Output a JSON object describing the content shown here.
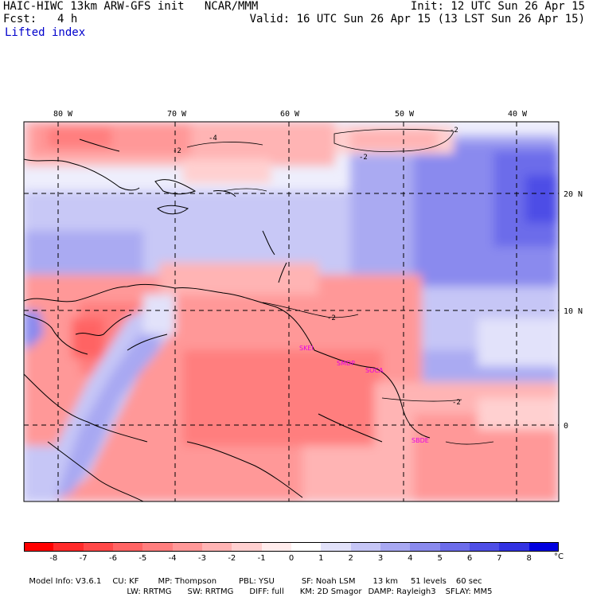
{
  "header": {
    "title_left": "HAIC-HIWC 13km ARW-GFS init   NCAR/MMM",
    "fcst_label": "Fcst:",
    "fcst_value": "4 h",
    "init": "Init: 12 UTC Sun 26 Apr 15",
    "valid": "Valid: 16 UTC Sun 26 Apr 15 (13 LST Sun 26 Apr 15)",
    "field": "Lifted index"
  },
  "map": {
    "lon_labels": [
      "80 W",
      "70 W",
      "60 W",
      "50 W",
      "40 W"
    ],
    "lat_labels": [
      "20 N",
      "10 N",
      "0"
    ],
    "contour_labels": [
      "-4",
      "-2",
      "-2",
      "-2",
      "-2",
      "-2"
    ],
    "stations": [
      "SKEI",
      "SMDP",
      "SOCA",
      "SBDE"
    ],
    "colors": {
      "neg8": "#ff0000",
      "neg7": "#ff3333",
      "neg6": "#ff5050",
      "neg5": "#ff6b6b",
      "neg4": "#ff8a8a",
      "neg3": "#ffa8a8",
      "neg2": "#ffc6c6",
      "neg1": "#ffe2e2",
      "zero": "#ffffff",
      "pos1": "#e3e3fb",
      "pos2": "#c8c8f6",
      "pos3": "#aaaaf2",
      "pos4": "#8c8cee",
      "pos5": "#6e6ee8",
      "pos6": "#5252e4",
      "pos7": "#3434e0",
      "pos8": "#1414dc",
      "station": "#e600e6"
    }
  },
  "colorbar": {
    "labels": [
      "-8",
      "-7",
      "-6",
      "-5",
      "-4",
      "-3",
      "-2",
      "-1",
      "0",
      "1",
      "2",
      "3",
      "4",
      "5",
      "6",
      "7",
      "8"
    ],
    "unit": "°C",
    "colors": [
      "#ff0000",
      "#ff2a2a",
      "#ff4848",
      "#ff6464",
      "#ff7e7e",
      "#ff9898",
      "#ffb4b4",
      "#ffd0d0",
      "#ffecec",
      "#ffffff",
      "#e2e2fa",
      "#c6c6f6",
      "#a8a8f2",
      "#8a8aee",
      "#6c6cea",
      "#4e4ee6",
      "#3232e2",
      "#0000e0"
    ]
  },
  "footer": {
    "line1": [
      "Model Info: V3.6.1",
      "CU: KF",
      "MP: Thompson",
      "PBL: YSU",
      "SF: Noah LSM",
      "13 km",
      "51 levels",
      "60 sec"
    ],
    "line2": [
      "LW: RRTMG",
      "SW: RRTMG",
      "DIFF: full",
      "KM: 2D Smagor",
      "DAMP: Rayleigh3",
      "SFLAY: MM5"
    ]
  }
}
